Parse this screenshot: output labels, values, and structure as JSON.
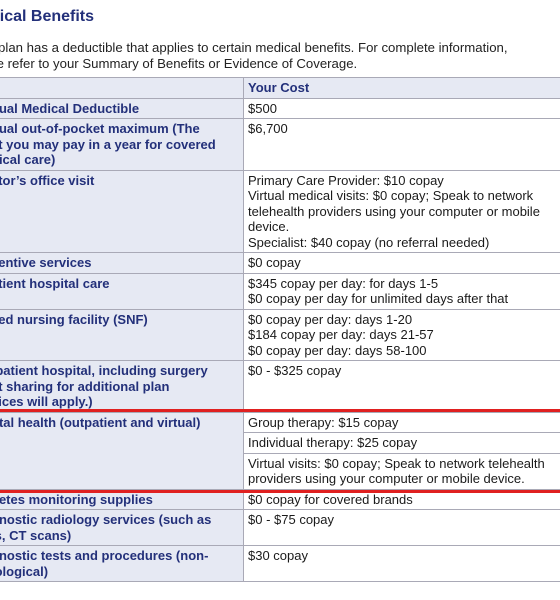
{
  "section_title": "dical Benefits",
  "intro_lines": [
    "r plan has a deductible that applies to certain medical benefits. For complete information,",
    "se refer to your Summary of Benefits or Evidence of Coverage."
  ],
  "table": {
    "header": {
      "col1": "",
      "col2": "Your Cost"
    },
    "rows": [
      {
        "label": [
          "nual Medical Deductible"
        ],
        "values": [
          "$500"
        ]
      },
      {
        "label": [
          "nual out-of-pocket maximum (The",
          "st you may pay in a year for covered",
          "dical care)"
        ],
        "values": [
          "$6,700"
        ]
      },
      {
        "label": [
          "ctor’s office visit"
        ],
        "values": [
          "Primary Care Provider: $10 copay",
          "Virtual medical visits: $0 copay; Speak to network",
          "telehealth providers using your computer or mobile",
          "device.",
          "Specialist:  $40 copay (no referral needed)"
        ]
      },
      {
        "label": [
          "ventive services"
        ],
        "values": [
          "$0 copay"
        ]
      },
      {
        "label": [
          "atient hospital care"
        ],
        "values": [
          "$345 copay per day: for days 1-5",
          "$0 copay per day  for unlimited days after that"
        ]
      },
      {
        "label": [
          "lled nursing facility (SNF)"
        ],
        "values": [
          "$0 copay per day: days 1-20",
          "$184 copay per day: days 21-57",
          "$0 copay per day: days 58-100"
        ]
      },
      {
        "label": [
          "tpatient hospital, including surgery",
          "st sharing for additional plan",
          "vices will apply.)"
        ],
        "values": [
          "$0 - $325 copay"
        ]
      }
    ],
    "mental_health": {
      "label": "ntal health (outpatient and virtual)",
      "subrows": [
        [
          "Group therapy: $15 copay"
        ],
        [
          "Individual therapy: $25 copay"
        ],
        [
          "Virtual visits: $0 copay; Speak to network telehealth",
          "providers using your computer or mobile device."
        ]
      ]
    },
    "rows_after": [
      {
        "label": [
          "betes monitoring supplies"
        ],
        "values": [
          "$0 copay for covered brands"
        ]
      },
      {
        "label": [
          "gnostic radiology services (such as",
          "ls, CT scans)"
        ],
        "values": [
          "$0 - $75 copay"
        ]
      },
      {
        "label": [
          "gnostic tests and procedures (non-",
          "iological)"
        ],
        "values": [
          "$30 copay"
        ]
      }
    ]
  },
  "colors": {
    "title": "#23307a",
    "label_bg": "#e6e9f3",
    "highlight_line": "#e02020",
    "border": "#a9a9b6"
  }
}
